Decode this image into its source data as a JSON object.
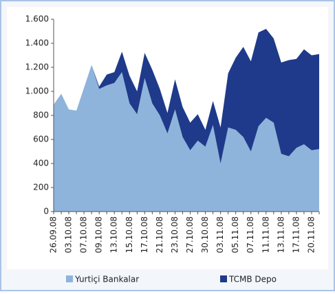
{
  "chart_data": {
    "type": "stacked-area",
    "categories": [
      "26.09.08",
      null,
      "03.10.08",
      null,
      "07.10.08",
      null,
      "09.10.08",
      null,
      "13.10.08",
      null,
      "15.10.08",
      null,
      "17.10.08",
      null,
      "21.10.08",
      null,
      "23.10.08",
      null,
      "27.10.08",
      null,
      "30.10.08",
      null,
      "03.11.08",
      null,
      "05.11.08",
      null,
      "07.11.08",
      null,
      "11.11.08",
      null,
      "13.11.08",
      null,
      "17.11.08",
      null,
      "20.11.08",
      null
    ],
    "series": [
      {
        "name": "Yurtiçi Bankalar",
        "color": "#8fb4db",
        "values": [
          890,
          980,
          850,
          840,
          1030,
          1220,
          1020,
          1050,
          1070,
          1160,
          900,
          810,
          1110,
          900,
          800,
          650,
          850,
          620,
          510,
          590,
          540,
          720,
          400,
          700,
          680,
          620,
          500,
          710,
          780,
          740,
          480,
          460,
          530,
          560,
          510,
          520
        ]
      },
      {
        "name": "TCMB Depo",
        "color": "#1f3a8a",
        "values": [
          0,
          0,
          0,
          0,
          0,
          0,
          20,
          90,
          90,
          170,
          230,
          190,
          210,
          280,
          220,
          170,
          250,
          250,
          230,
          220,
          140,
          200,
          300,
          450,
          600,
          750,
          750,
          780,
          740,
          700,
          760,
          800,
          740,
          790,
          790,
          790
        ]
      }
    ],
    "ylim": [
      0,
      1600
    ],
    "yticks": [
      0,
      200,
      400,
      600,
      800,
      {
        "value": 1000,
        "label": "1.000"
      },
      {
        "value": 1200,
        "label": "1.200"
      },
      {
        "value": 1400,
        "label": "1.400"
      },
      {
        "value": 1600,
        "label": "1.600"
      }
    ],
    "grid": false,
    "legend": "bottom"
  }
}
